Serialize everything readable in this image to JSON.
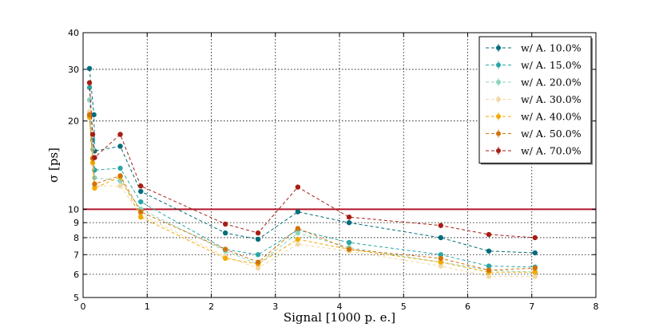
{
  "chart_data": {
    "type": "line",
    "xlabel": "Signal [1000 p. e.]",
    "ylabel": "σ [ps]",
    "xlim": [
      0,
      8
    ],
    "ylim": [
      5,
      40
    ],
    "yscale": "log",
    "grid": true,
    "legend_position": "top-right",
    "x_ticks": [
      "0",
      "1",
      "2",
      "3",
      "4",
      "5",
      "6",
      "7",
      "8"
    ],
    "y_ticks": [
      {
        "value": 5,
        "label": "5"
      },
      {
        "value": 6,
        "label": "6"
      },
      {
        "value": 7,
        "label": "7"
      },
      {
        "value": 8,
        "label": "8"
      },
      {
        "value": 9,
        "label": "9"
      },
      {
        "value": 10,
        "label": "10"
      },
      {
        "value": 20,
        "label": "20"
      },
      {
        "value": 30,
        "label": "30"
      },
      {
        "value": 40,
        "label": "40"
      }
    ],
    "reference_line": {
      "y": 10,
      "color": "#b2182b"
    },
    "series": [
      {
        "name": "w/ A. 10.0%",
        "color": "#016c7a",
        "points": [
          [
            0.1,
            30.2
          ],
          [
            0.17,
            21.0
          ],
          [
            0.18,
            15.8
          ],
          [
            0.58,
            16.4
          ],
          [
            0.9,
            11.5
          ],
          [
            2.22,
            8.3
          ],
          [
            2.73,
            7.9
          ],
          [
            3.35,
            9.8
          ],
          [
            4.15,
            9.0
          ],
          [
            5.58,
            8.0
          ],
          [
            6.33,
            7.2
          ],
          [
            7.05,
            7.1
          ]
        ]
      },
      {
        "name": "w/ A. 15.0%",
        "color": "#2aa6a6",
        "points": [
          [
            0.1,
            26.0
          ],
          [
            0.15,
            17.2
          ],
          [
            0.18,
            13.6
          ],
          [
            0.58,
            13.8
          ],
          [
            0.9,
            10.6
          ],
          [
            2.22,
            7.3
          ],
          [
            2.73,
            7.0
          ],
          [
            3.35,
            8.5
          ],
          [
            4.15,
            7.7
          ],
          [
            5.58,
            7.0
          ],
          [
            6.33,
            6.4
          ],
          [
            7.05,
            6.35
          ]
        ]
      },
      {
        "name": "w/ A. 20.0%",
        "color": "#8dd3c0",
        "points": [
          [
            0.1,
            23.6
          ],
          [
            0.15,
            16.0
          ],
          [
            0.18,
            12.8
          ],
          [
            0.58,
            12.5
          ],
          [
            0.9,
            10.0
          ],
          [
            2.22,
            7.2
          ],
          [
            2.73,
            6.5
          ],
          [
            3.35,
            8.3
          ],
          [
            4.15,
            7.4
          ],
          [
            5.58,
            6.6
          ],
          [
            6.33,
            6.2
          ],
          [
            7.05,
            6.1
          ]
        ]
      },
      {
        "name": "w/ A. 30.0%",
        "color": "#f2d9a6",
        "points": [
          [
            0.1,
            21.5
          ],
          [
            0.15,
            15.0
          ],
          [
            0.18,
            12.0
          ],
          [
            0.58,
            12.0
          ],
          [
            0.9,
            9.6
          ],
          [
            2.22,
            6.9
          ],
          [
            2.73,
            6.3
          ],
          [
            3.35,
            7.6
          ],
          [
            4.15,
            7.2
          ],
          [
            5.58,
            6.4
          ],
          [
            6.33,
            5.9
          ],
          [
            7.05,
            5.9
          ]
        ]
      },
      {
        "name": "w/ A. 40.0%",
        "color": "#f2a900",
        "points": [
          [
            0.1,
            20.6
          ],
          [
            0.15,
            14.4
          ],
          [
            0.18,
            11.8
          ],
          [
            0.58,
            12.9
          ],
          [
            0.9,
            9.4
          ],
          [
            2.22,
            6.8
          ],
          [
            2.73,
            6.5
          ],
          [
            3.35,
            7.9
          ],
          [
            4.15,
            7.3
          ],
          [
            5.58,
            6.6
          ],
          [
            6.33,
            6.1
          ],
          [
            7.05,
            6.1
          ]
        ]
      },
      {
        "name": "w/ A. 50.0%",
        "color": "#d2730a",
        "points": [
          [
            0.1,
            21.0
          ],
          [
            0.15,
            14.9
          ],
          [
            0.18,
            12.2
          ],
          [
            0.58,
            13.0
          ],
          [
            0.9,
            9.8
          ],
          [
            2.22,
            7.3
          ],
          [
            2.73,
            6.6
          ],
          [
            3.35,
            8.6
          ],
          [
            4.15,
            7.3
          ],
          [
            5.58,
            6.8
          ],
          [
            6.33,
            6.2
          ],
          [
            7.05,
            6.3
          ]
        ]
      },
      {
        "name": "w/ A. 70.0%",
        "color": "#a61e14",
        "points": [
          [
            0.1,
            27.0
          ],
          [
            0.15,
            18.0
          ],
          [
            0.18,
            15.0
          ],
          [
            0.58,
            18.0
          ],
          [
            0.9,
            12.0
          ],
          [
            2.22,
            8.9
          ],
          [
            2.73,
            8.3
          ],
          [
            3.35,
            11.9
          ],
          [
            4.15,
            9.4
          ],
          [
            5.58,
            8.8
          ],
          [
            6.33,
            8.2
          ],
          [
            7.05,
            8.0
          ]
        ]
      }
    ]
  }
}
